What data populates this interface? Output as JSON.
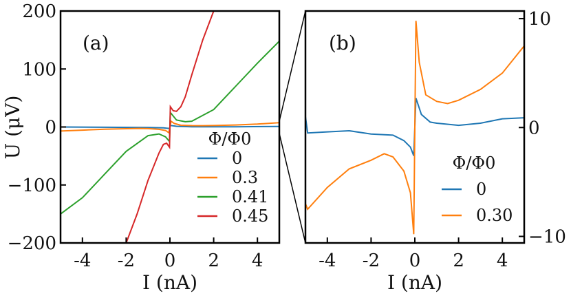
{
  "chart_data": [
    {
      "type": "line",
      "panel_label": "(a)",
      "xlabel": "I (nA)",
      "ylabel": "U (μV)",
      "xlim": [
        -5,
        5
      ],
      "ylim": [
        -200,
        200
      ],
      "xticks": [
        "-4",
        "-2",
        "0",
        "2",
        "4"
      ],
      "xtick_values": [
        -4,
        -2,
        0,
        2,
        4
      ],
      "yticks": [
        "200",
        "100",
        "0",
        "−100",
        "−200"
      ],
      "ytick_values": [
        200,
        100,
        0,
        -100,
        -200
      ],
      "legend_title": "Φ/Φ0",
      "legend_placement": "lower-right",
      "series": [
        {
          "name": "0",
          "color": "#1f77b4",
          "x": [
            -5,
            -3,
            -1,
            -0.3,
            -0.02,
            0.02,
            0.3,
            1,
            3,
            5
          ],
          "y": [
            0,
            -0.5,
            -1,
            -1.5,
            -2.6,
            2.6,
            1.2,
            0.4,
            0.3,
            0.9
          ]
        },
        {
          "name": "0.3",
          "color": "#ff7f0e",
          "x": [
            -5,
            -4,
            -3,
            -2,
            -1.4,
            -1,
            -0.5,
            -0.2,
            -0.05,
            0.05,
            0.2,
            0.5,
            1,
            1.5,
            2,
            3,
            4,
            5
          ],
          "y": [
            -7,
            -5.5,
            -3.8,
            -3,
            -2.5,
            -2.8,
            -4,
            -6,
            -9.8,
            9.8,
            6,
            3,
            2.4,
            2.2,
            2.5,
            3.5,
            5,
            7.5
          ]
        },
        {
          "name": "0.41",
          "color": "#2ca02c",
          "x": [
            -5,
            -4,
            -3,
            -2,
            -1,
            -0.5,
            -0.2,
            -0.02,
            0.02,
            0.3,
            0.7,
            1,
            2,
            3,
            4,
            5
          ],
          "y": [
            -150,
            -122,
            -82,
            -42,
            -15,
            -12,
            -17,
            -25,
            25,
            12,
            9,
            10,
            30,
            70,
            110,
            148
          ]
        },
        {
          "name": "0.45",
          "color": "#d62728",
          "x": [
            -2,
            -1.5,
            -1,
            -0.5,
            -0.3,
            -0.15,
            -0.02,
            0.02,
            0.15,
            0.3,
            0.5,
            0.7,
            1,
            1.5,
            2
          ],
          "y": [
            -200,
            -150,
            -92,
            -45,
            -30,
            -28,
            -35,
            35,
            28,
            27,
            35,
            52,
            90,
            150,
            200
          ]
        }
      ]
    },
    {
      "type": "line",
      "panel_label": "(b)",
      "xlabel": "I (nA)",
      "xlim": [
        -5,
        5
      ],
      "ylim": [
        -10.6,
        10.7
      ],
      "xticks": [
        "-4",
        "-2",
        "0",
        "2",
        "4"
      ],
      "xtick_values": [
        -4,
        -2,
        0,
        2,
        4
      ],
      "yticks": [
        "10",
        "0",
        "−10"
      ],
      "ytick_values": [
        10,
        0,
        -10
      ],
      "yaxis_side": "right",
      "legend_title": "Φ/Φ0",
      "legend_placement": "lower-right",
      "series": [
        {
          "name": "0",
          "color": "#1f77b4",
          "x": [
            -5,
            -4.9,
            -4,
            -3,
            -2,
            -1,
            -0.5,
            -0.2,
            -0.05,
            0.05,
            0.3,
            0.7,
            1,
            2,
            3,
            4,
            5
          ],
          "y": [
            1,
            -0.5,
            -0.4,
            -0.3,
            -0.6,
            -0.7,
            -1.2,
            -1.8,
            -2.6,
            2.7,
            1.2,
            0.5,
            0.4,
            0.2,
            0.4,
            0.8,
            0.9
          ]
        },
        {
          "name": "0.30",
          "color": "#ff7f0e",
          "x": [
            -5,
            -4.9,
            -4,
            -3,
            -2,
            -1.4,
            -1,
            -0.5,
            -0.2,
            -0.05,
            0.05,
            0.2,
            0.5,
            1,
            1.5,
            2,
            3,
            4,
            5
          ],
          "y": [
            -7,
            -7.5,
            -5.5,
            -3.8,
            -3,
            -2.4,
            -2.7,
            -4,
            -6,
            -9.8,
            9.8,
            6,
            3,
            2.4,
            2.2,
            2.5,
            3.5,
            5,
            7.5
          ]
        }
      ]
    }
  ]
}
